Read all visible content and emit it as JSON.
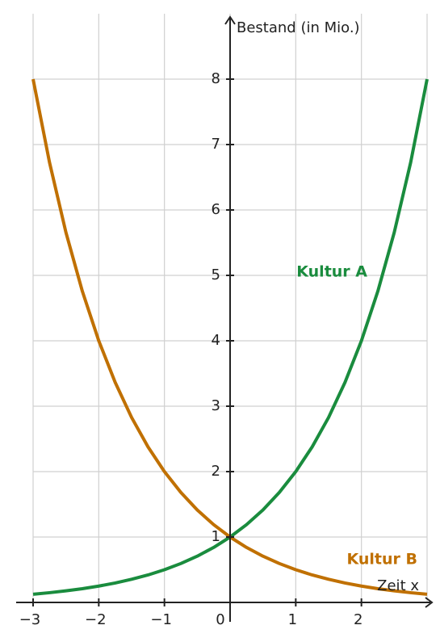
{
  "chart_data": {
    "type": "line",
    "y_label": "Bestand (in Mio.)",
    "x_label": "Zeit x",
    "x": [
      -3,
      -2.75,
      -2.5,
      -2.25,
      -2,
      -1.75,
      -1.5,
      -1.25,
      -1,
      -0.75,
      -0.5,
      -0.25,
      0,
      0.25,
      0.5,
      0.75,
      1,
      1.25,
      1.5,
      1.75,
      2,
      2.25,
      2.5,
      2.75,
      3
    ],
    "series": [
      {
        "name": "Kultur A",
        "color": "#1a8c3e",
        "values": [
          0.125,
          0.149,
          0.177,
          0.21,
          0.25,
          0.297,
          0.354,
          0.42,
          0.5,
          0.595,
          0.707,
          0.841,
          1,
          1.189,
          1.414,
          1.682,
          2,
          2.378,
          2.828,
          3.364,
          4,
          4.757,
          5.657,
          6.727,
          8
        ]
      },
      {
        "name": "Kultur B",
        "color": "#c07000",
        "values": [
          8,
          6.727,
          5.657,
          4.757,
          4,
          3.364,
          2.828,
          2.378,
          2,
          1.682,
          1.414,
          1.189,
          1,
          0.841,
          0.707,
          0.595,
          0.5,
          0.42,
          0.354,
          0.297,
          0.25,
          0.21,
          0.177,
          0.149,
          0.125
        ]
      }
    ],
    "xlim": [
      -3,
      3
    ],
    "ylim": [
      0,
      9
    ],
    "xticks": [
      {
        "value": -3,
        "label": "−3"
      },
      {
        "value": -2,
        "label": "−2"
      },
      {
        "value": -1,
        "label": "−1"
      },
      0,
      1,
      2
    ],
    "yticks": [
      1,
      2,
      3,
      4,
      5,
      6,
      7,
      8
    ],
    "grid": true
  }
}
